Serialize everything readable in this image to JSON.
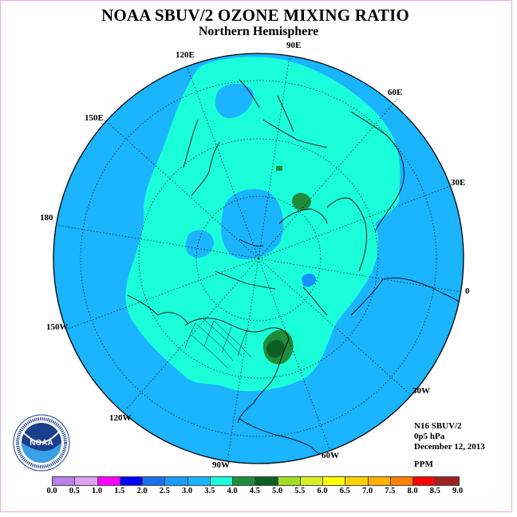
{
  "title": "NOAA SBUV/2 OZONE MIXING RATIO",
  "subtitle": "Northern Hemisphere",
  "longitude_labels": {
    "lon_90e": "90E",
    "lon_60e": "60E",
    "lon_120e": "120E",
    "lon_150e": "150E",
    "lon_30e": "30E",
    "lon_180": "180",
    "lon_0": "0",
    "lon_150w": "150W",
    "lon_30w": "30W",
    "lon_120w": "120W",
    "lon_60w": "60W",
    "lon_90w": "90W"
  },
  "info": {
    "instrument": "N16 SBUV/2",
    "level": "0p5 hPa",
    "date": "December 12, 2013",
    "units": "PPM"
  },
  "logo": {
    "center_text": "NOAA",
    "ring_text": "NATIONAL OCEANIC AND ATMOSPHERIC ADMINISTRATION · U.S. DEPARTMENT OF COMMERCE"
  },
  "colors": {
    "ocean_background": "#1ab4ff",
    "mid_band": "#1affd9",
    "high_green": "#1f8c3c",
    "peak_green": "#0f5f25",
    "low_blue": "#1890ff",
    "coastline": "#000000",
    "frame_border": "#e6a8e6"
  },
  "colorbar": {
    "ticks": [
      "0.0",
      "0.5",
      "1.0",
      "1.5",
      "2.0",
      "2.5",
      "3.0",
      "3.5",
      "4.0",
      "4.5",
      "5.0",
      "5.5",
      "6.0",
      "6.5",
      "7.0",
      "7.5",
      "8.0",
      "8.5",
      "9.0"
    ],
    "colors": [
      "#b87ff0",
      "#e0a0f0",
      "#ff00ff",
      "#0000ff",
      "#1870f0",
      "#1a9cff",
      "#1ab4ff",
      "#1affd9",
      "#1f8c3c",
      "#0f5f25",
      "#a0e020",
      "#d8f020",
      "#ffff00",
      "#ffd000",
      "#ffb000",
      "#ff8000",
      "#ff0000",
      "#a02020",
      "#7a5030"
    ]
  }
}
